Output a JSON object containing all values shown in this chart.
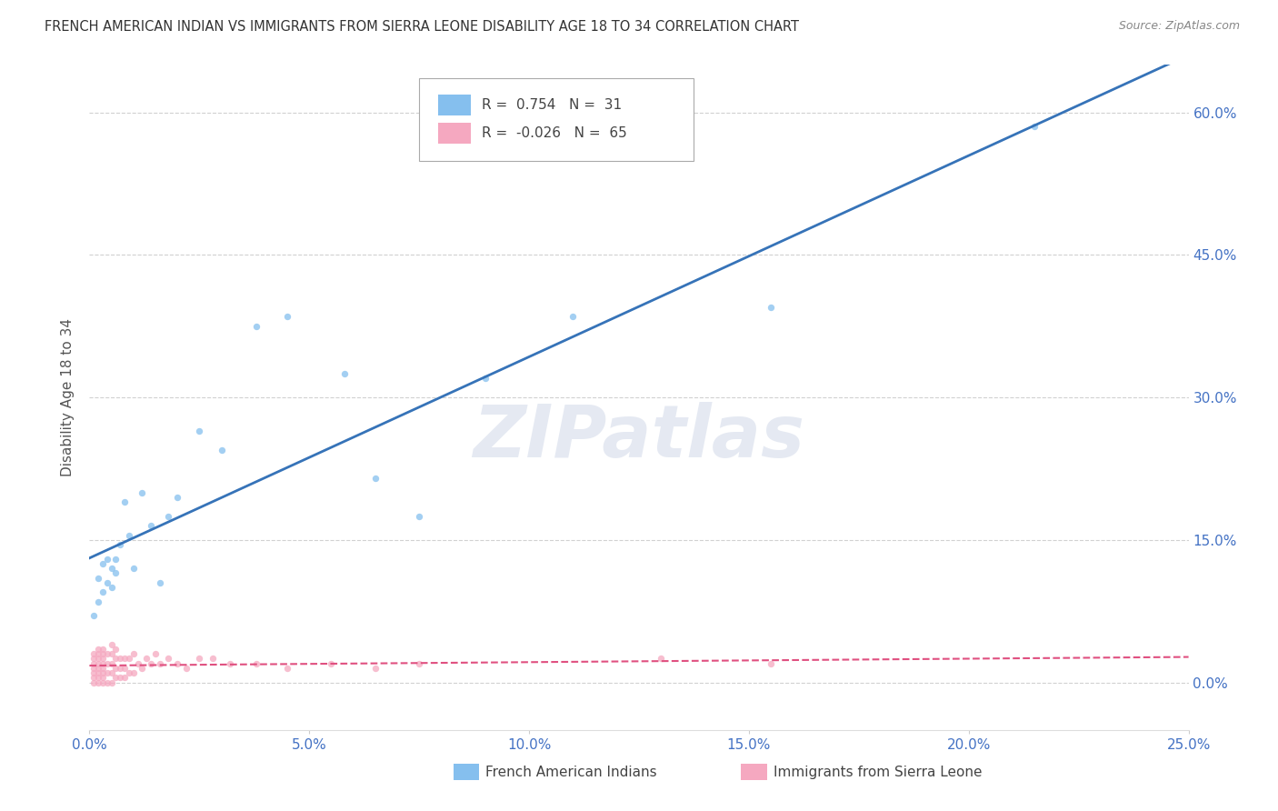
{
  "title": "FRENCH AMERICAN INDIAN VS IMMIGRANTS FROM SIERRA LEONE DISABILITY AGE 18 TO 34 CORRELATION CHART",
  "source": "Source: ZipAtlas.com",
  "ylabel": "Disability Age 18 to 34",
  "watermark": "ZIPatlas",
  "series1_name": "French American Indians",
  "series1_color": "#85BFEE",
  "series1_line_color": "#3673B8",
  "series1_R": 0.754,
  "series1_N": 31,
  "series2_name": "Immigrants from Sierra Leone",
  "series2_color": "#F5A8C0",
  "series2_line_color": "#E05080",
  "series2_R": -0.026,
  "series2_N": 65,
  "xmin": 0.0,
  "xmax": 0.25,
  "ymin": -0.05,
  "ymax": 0.65,
  "yticks": [
    0.0,
    0.15,
    0.3,
    0.45,
    0.6
  ],
  "xticks": [
    0.0,
    0.05,
    0.1,
    0.15,
    0.2,
    0.25
  ],
  "series1_x": [
    0.001,
    0.002,
    0.002,
    0.003,
    0.003,
    0.004,
    0.004,
    0.005,
    0.005,
    0.006,
    0.006,
    0.007,
    0.008,
    0.009,
    0.01,
    0.012,
    0.014,
    0.016,
    0.018,
    0.02,
    0.025,
    0.03,
    0.038,
    0.045,
    0.058,
    0.065,
    0.075,
    0.09,
    0.11,
    0.155,
    0.215
  ],
  "series1_y": [
    0.07,
    0.085,
    0.11,
    0.095,
    0.125,
    0.105,
    0.13,
    0.12,
    0.1,
    0.13,
    0.115,
    0.145,
    0.19,
    0.155,
    0.12,
    0.2,
    0.165,
    0.105,
    0.175,
    0.195,
    0.265,
    0.245,
    0.375,
    0.385,
    0.325,
    0.215,
    0.175,
    0.32,
    0.385,
    0.395,
    0.585
  ],
  "series2_x": [
    0.001,
    0.001,
    0.001,
    0.001,
    0.001,
    0.001,
    0.001,
    0.002,
    0.002,
    0.002,
    0.002,
    0.002,
    0.002,
    0.002,
    0.002,
    0.003,
    0.003,
    0.003,
    0.003,
    0.003,
    0.003,
    0.003,
    0.003,
    0.004,
    0.004,
    0.004,
    0.004,
    0.005,
    0.005,
    0.005,
    0.005,
    0.005,
    0.006,
    0.006,
    0.006,
    0.006,
    0.007,
    0.007,
    0.007,
    0.008,
    0.008,
    0.008,
    0.009,
    0.009,
    0.01,
    0.01,
    0.011,
    0.012,
    0.013,
    0.014,
    0.015,
    0.016,
    0.018,
    0.02,
    0.022,
    0.025,
    0.028,
    0.032,
    0.038,
    0.045,
    0.055,
    0.065,
    0.075,
    0.13,
    0.155
  ],
  "series2_y": [
    0.0,
    0.005,
    0.01,
    0.015,
    0.02,
    0.025,
    0.03,
    0.0,
    0.005,
    0.01,
    0.015,
    0.02,
    0.025,
    0.03,
    0.035,
    0.0,
    0.005,
    0.01,
    0.015,
    0.02,
    0.025,
    0.03,
    0.035,
    0.0,
    0.01,
    0.02,
    0.03,
    0.0,
    0.01,
    0.02,
    0.03,
    0.04,
    0.005,
    0.015,
    0.025,
    0.035,
    0.005,
    0.015,
    0.025,
    0.005,
    0.015,
    0.025,
    0.01,
    0.025,
    0.01,
    0.03,
    0.02,
    0.015,
    0.025,
    0.02,
    0.03,
    0.02,
    0.025,
    0.02,
    0.015,
    0.025,
    0.025,
    0.02,
    0.02,
    0.015,
    0.02,
    0.015,
    0.02,
    0.025,
    0.02
  ],
  "grid_color": "#CCCCCC",
  "bg_color": "#FFFFFF",
  "axis_color": "#4472C4",
  "title_color": "#333333",
  "source_color": "#888888"
}
